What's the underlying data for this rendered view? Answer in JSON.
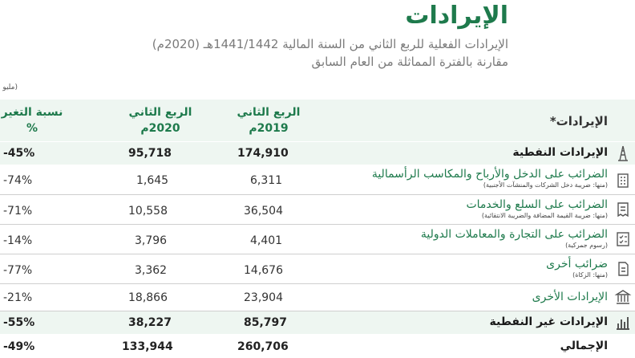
{
  "header": {
    "title": "الإيرادات",
    "subtitle1": "الإيرادات الفعلية للربع الثاني من السنة المالية 1441/1442هـ (2020م)",
    "subtitle2": "مقارنة بالفترة المماثلة من العام السابق",
    "unit_label": "(مليو"
  },
  "table": {
    "columns": {
      "revenue": "الإيرادات*",
      "q2_2019_line1": "الربع الثاني",
      "q2_2019_line2": "2019م",
      "q2_2020_line1": "الربع الثاني",
      "q2_2020_line2": "2020م",
      "change_line1": "نسبة التغير",
      "change_line2": "%"
    },
    "rows": [
      {
        "label": "الإيرادات النفطية",
        "note": "",
        "q2_2019": "174,910",
        "q2_2020": "95,718",
        "change": "-45%",
        "icon": "oil-rig-icon"
      },
      {
        "label": "الضرائب على الدخل والأرباح والمكاسب الرأسمالية",
        "note": "(منها: ضريبة دخل الشركات والمنشآت الأجنبية)",
        "q2_2019": "6,311",
        "q2_2020": "1,645",
        "change": "-74%",
        "icon": "building-icon"
      },
      {
        "label": "الضرائب على السلع والخدمات",
        "note": "(منها: ضريبة القيمة المضافة والضريبة الانتقائية)",
        "q2_2019": "36,504",
        "q2_2020": "10,558",
        "change": "-71%",
        "icon": "receipt-icon"
      },
      {
        "label": "الضرائب على التجارة والمعاملات الدولية",
        "note": "(رسوم جمركية)",
        "q2_2019": "4,401",
        "q2_2020": "3,796",
        "change": "-14%",
        "icon": "checklist-icon"
      },
      {
        "label": "ضرائب أخرى",
        "note": "(منها: الزكاة)",
        "q2_2019": "14,676",
        "q2_2020": "3,362",
        "change": "-77%",
        "icon": "document-icon"
      },
      {
        "label": "الإيرادات الأخرى",
        "note": "",
        "q2_2019": "23,904",
        "q2_2020": "18,866",
        "change": "-21%",
        "icon": "institution-icon"
      },
      {
        "label": "الإيرادات غير النفطية",
        "note": "",
        "q2_2019": "85,797",
        "q2_2020": "38,227",
        "change": "-55%",
        "icon": "bar-chart-icon"
      },
      {
        "label": "الإجمالي",
        "note": "",
        "q2_2019": "260,706",
        "q2_2020": "133,944",
        "change": "-49%",
        "icon": ""
      }
    ]
  },
  "colors": {
    "accent": "#1e7a4c",
    "row_shade": "#eef6f1"
  }
}
